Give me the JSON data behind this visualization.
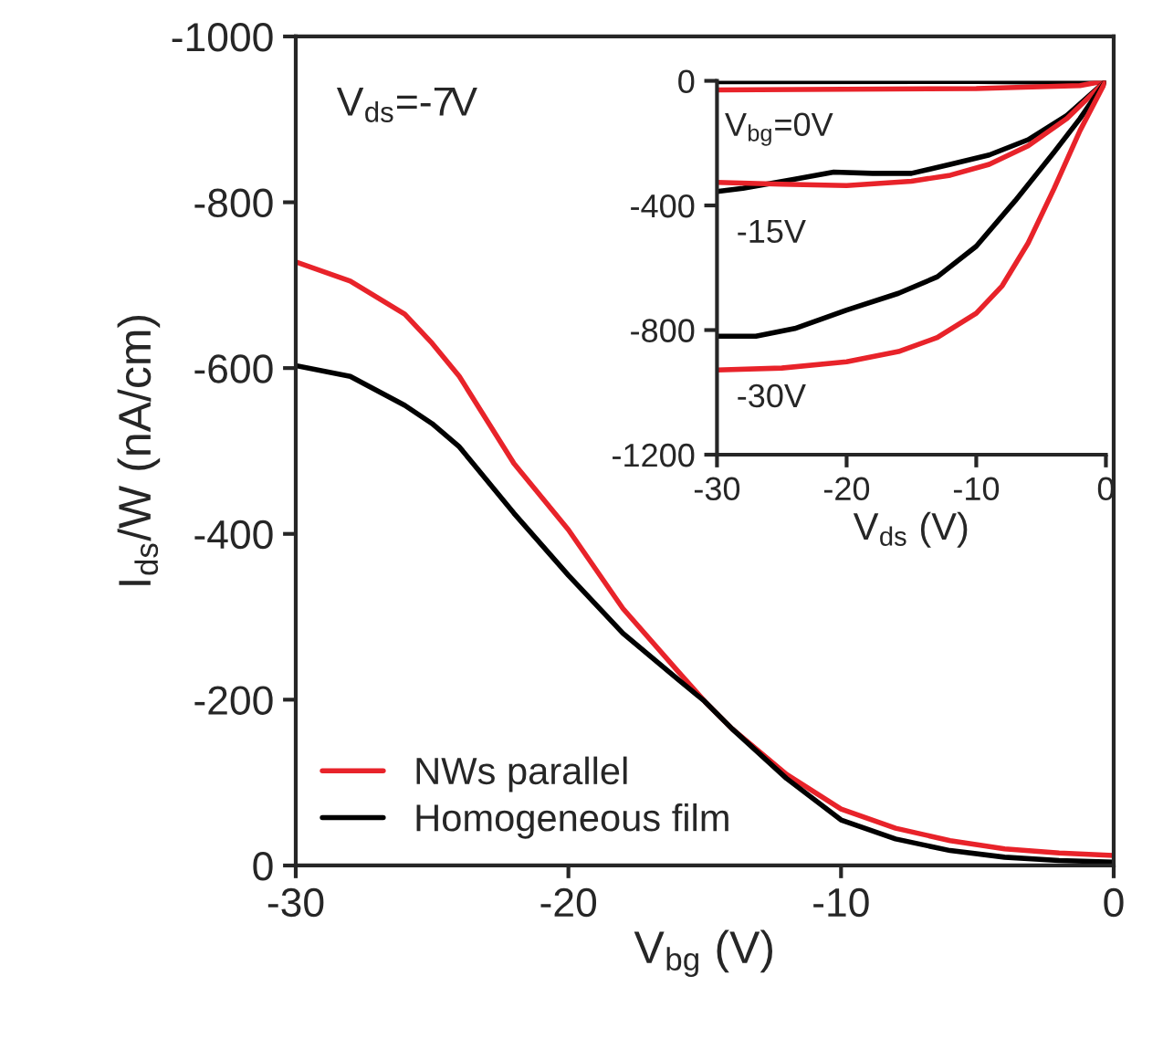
{
  "chart_data": [
    {
      "type": "line",
      "xlabel": "V$_{bg}$ (V)",
      "ylabel": "I$_{ds}$/W (nA/cm)",
      "xlim": [
        -30,
        0
      ],
      "ylim": [
        0,
        -1000
      ],
      "xticks": [
        -30,
        -20,
        -10,
        0
      ],
      "yticks": [
        0,
        -200,
        -400,
        -600,
        -800,
        -1000
      ],
      "grid": false,
      "legend": "bottom left",
      "annotations": [
        "V$_{ds}$=-7V"
      ],
      "series": [
        {
          "name": "NWs parallel",
          "color": "#e8232a",
          "x": [
            -30,
            -28,
            -26,
            -25,
            -24,
            -22,
            -20,
            -18,
            -16,
            -15,
            -14,
            -12,
            -10,
            -8,
            -6,
            -4,
            -2,
            0
          ],
          "values": [
            -728,
            -705,
            -665,
            -630,
            -590,
            -485,
            -405,
            -310,
            -235,
            -198,
            -165,
            -110,
            -68,
            -45,
            -30,
            -20,
            -15,
            -12
          ]
        },
        {
          "name": "Homogeneous film",
          "color": "#000000",
          "x": [
            -30,
            -28,
            -26,
            -25,
            -24,
            -22,
            -20,
            -18,
            -16,
            -15,
            -14,
            -12,
            -10,
            -8,
            -6,
            -4,
            -2,
            0
          ],
          "values": [
            -603,
            -590,
            -555,
            -533,
            -505,
            -425,
            -350,
            -280,
            -225,
            -198,
            -165,
            -105,
            -55,
            -32,
            -18,
            -10,
            -6,
            -4
          ]
        }
      ]
    },
    {
      "type": "line",
      "xlabel": "V$_{ds}$ (V)",
      "xlim": [
        -30,
        0
      ],
      "ylim": [
        -1200,
        0
      ],
      "xticks": [
        -30,
        -20,
        -10,
        0
      ],
      "yticks": [
        0,
        -400,
        -800,
        -1200
      ],
      "grid": false,
      "annotations": [
        "V$_{bg}$=0V",
        "-15V",
        "-30V"
      ],
      "series": [
        {
          "color": "#000000",
          "x": [
            -30,
            -10,
            -4,
            0
          ],
          "values": [
            -3,
            -2,
            -4,
            0
          ]
        },
        {
          "color": "#e8232a",
          "x": [
            -30,
            -10,
            -2,
            0
          ],
          "values": [
            -29,
            -25,
            -15,
            0
          ]
        },
        {
          "color": "#000000",
          "x": [
            -30,
            -28,
            -24,
            -21,
            -18,
            -15,
            -12,
            -9,
            -6,
            -3,
            0
          ],
          "values": [
            -355,
            -345,
            -316,
            -293,
            -297,
            -297,
            -268,
            -238,
            -189,
            -111,
            0
          ]
        },
        {
          "color": "#e8232a",
          "x": [
            -30,
            -25,
            -20,
            -15,
            -12,
            -9,
            -6,
            -3,
            0
          ],
          "values": [
            -326,
            -332,
            -336,
            -322,
            -303,
            -268,
            -209,
            -121,
            0
          ]
        },
        {
          "color": "#000000",
          "x": [
            -30,
            -27,
            -24,
            -20,
            -16,
            -13,
            -10,
            -7,
            -4,
            -2,
            0
          ],
          "values": [
            -820,
            -820,
            -795,
            -736,
            -682,
            -629,
            -531,
            -385,
            -229,
            -121,
            0
          ]
        },
        {
          "color": "#e8232a",
          "x": [
            -30,
            -25,
            -20,
            -16,
            -13,
            -10,
            -8,
            -6,
            -4,
            -2,
            0
          ],
          "values": [
            -928,
            -922,
            -902,
            -869,
            -824,
            -746,
            -658,
            -521,
            -346,
            -160,
            0
          ]
        }
      ]
    }
  ]
}
